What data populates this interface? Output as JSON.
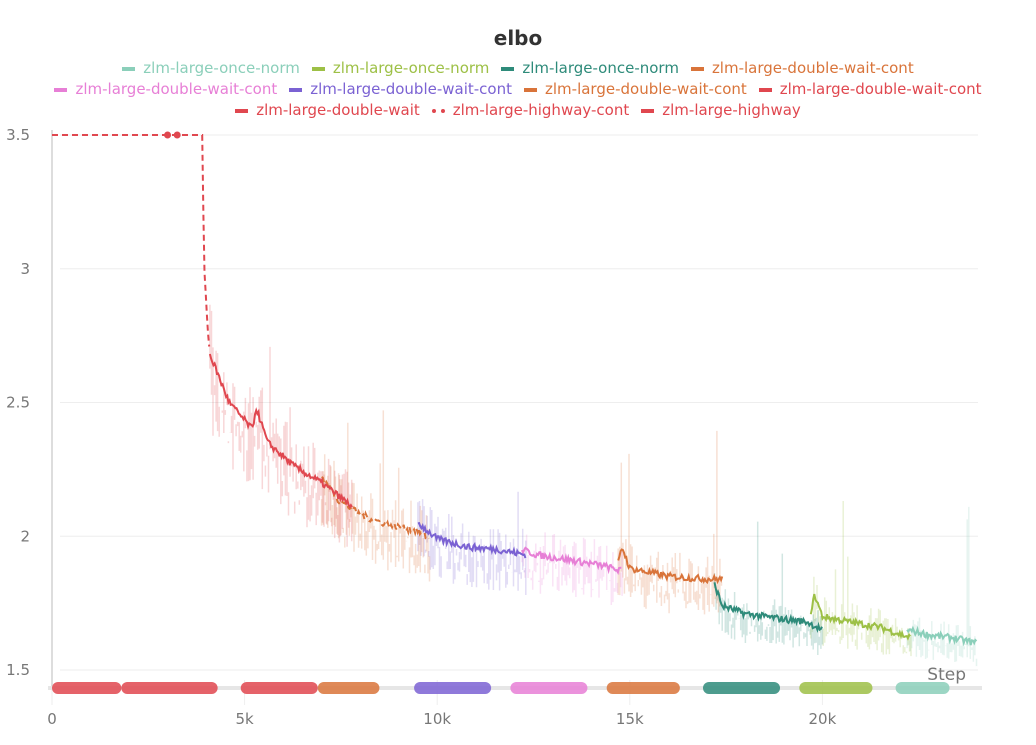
{
  "chart_data": {
    "type": "line",
    "title": "elbo",
    "xlabel": "Step",
    "ylabel": "",
    "xlim": [
      0,
      24000
    ],
    "ylim": [
      1.45,
      3.5
    ],
    "x_ticks": [
      "0",
      "5k",
      "10k",
      "15k",
      "20k"
    ],
    "x_tick_values": [
      0,
      5000,
      10000,
      15000,
      20000
    ],
    "y_ticks": [
      "1.5",
      "2",
      "2.5",
      "3",
      "3.5"
    ],
    "y_tick_values": [
      1.5,
      2,
      2.5,
      3,
      3.5
    ],
    "grid": true,
    "legend_position": "top",
    "series": [
      {
        "name": "zlm-large-once-norm",
        "color": "#8bcfba",
        "dash": "solid",
        "points": [
          [
            22200,
            1.65
          ],
          [
            22800,
            1.63
          ],
          [
            23400,
            1.62
          ],
          [
            24000,
            1.6
          ]
        ]
      },
      {
        "name": "zlm-large-once-norm",
        "color": "#9dc046",
        "dash": "solid",
        "points": [
          [
            19700,
            1.72
          ],
          [
            19800,
            1.78
          ],
          [
            20000,
            1.7
          ],
          [
            20700,
            1.68
          ],
          [
            21500,
            1.66
          ],
          [
            22300,
            1.62
          ]
        ]
      },
      {
        "name": "zlm-large-once-norm",
        "color": "#2e8b7a",
        "dash": "solid",
        "points": [
          [
            17200,
            1.82
          ],
          [
            17400,
            1.74
          ],
          [
            18000,
            1.71
          ],
          [
            19000,
            1.69
          ],
          [
            19600,
            1.68
          ],
          [
            20000,
            1.65
          ]
        ]
      },
      {
        "name": "zlm-large-double-wait-cont",
        "color": "#d9743a",
        "dash": "solid",
        "points": [
          [
            14700,
            1.9
          ],
          [
            14800,
            1.96
          ],
          [
            15000,
            1.88
          ],
          [
            16000,
            1.85
          ],
          [
            17000,
            1.84
          ],
          [
            17400,
            1.84
          ]
        ]
      },
      {
        "name": "zlm-large-double-wait-cont",
        "color": "#e77fd6",
        "dash": "solid",
        "points": [
          [
            12200,
            1.95
          ],
          [
            12600,
            1.93
          ],
          [
            13500,
            1.91
          ],
          [
            14300,
            1.89
          ],
          [
            14800,
            1.87
          ]
        ]
      },
      {
        "name": "zlm-large-double-wait-cont",
        "color": "#7b62d3",
        "dash": "solid",
        "points": [
          [
            9500,
            2.05
          ],
          [
            10000,
            1.99
          ],
          [
            10800,
            1.96
          ],
          [
            11600,
            1.95
          ],
          [
            12300,
            1.93
          ]
        ]
      },
      {
        "name": "zlm-large-double-wait-cont",
        "color": "#d9743a",
        "dash": "dashed",
        "points": [
          [
            7000,
            2.22
          ],
          [
            7400,
            2.14
          ],
          [
            8000,
            2.08
          ],
          [
            8800,
            2.04
          ],
          [
            9500,
            2.02
          ],
          [
            9800,
            1.99
          ]
        ]
      },
      {
        "name": "zlm-large-double-wait-cont",
        "color": "#e0474f",
        "dash": "solid",
        "points": [
          [
            4100,
            2.68
          ],
          [
            4600,
            2.5
          ],
          [
            5200,
            2.4
          ],
          [
            5300,
            2.48
          ],
          [
            5600,
            2.35
          ],
          [
            6300,
            2.26
          ],
          [
            7000,
            2.2
          ],
          [
            7800,
            2.11
          ]
        ]
      },
      {
        "name": "zlm-large-double-wait",
        "color": "#e0474f",
        "dash": "dashed",
        "points": [
          [
            0,
            3.5
          ],
          [
            3000,
            3.5
          ],
          [
            3250,
            3.5
          ],
          [
            3900,
            3.5
          ],
          [
            3950,
            3.0
          ],
          [
            4050,
            2.75
          ],
          [
            4100,
            2.68
          ]
        ]
      },
      {
        "name": "zlm-large-highway-cont",
        "color": "#e0474f",
        "dash": "dotted",
        "points": []
      },
      {
        "name": "zlm-large-highway",
        "color": "#e0474f",
        "dash": "dashdot",
        "points": []
      }
    ]
  }
}
